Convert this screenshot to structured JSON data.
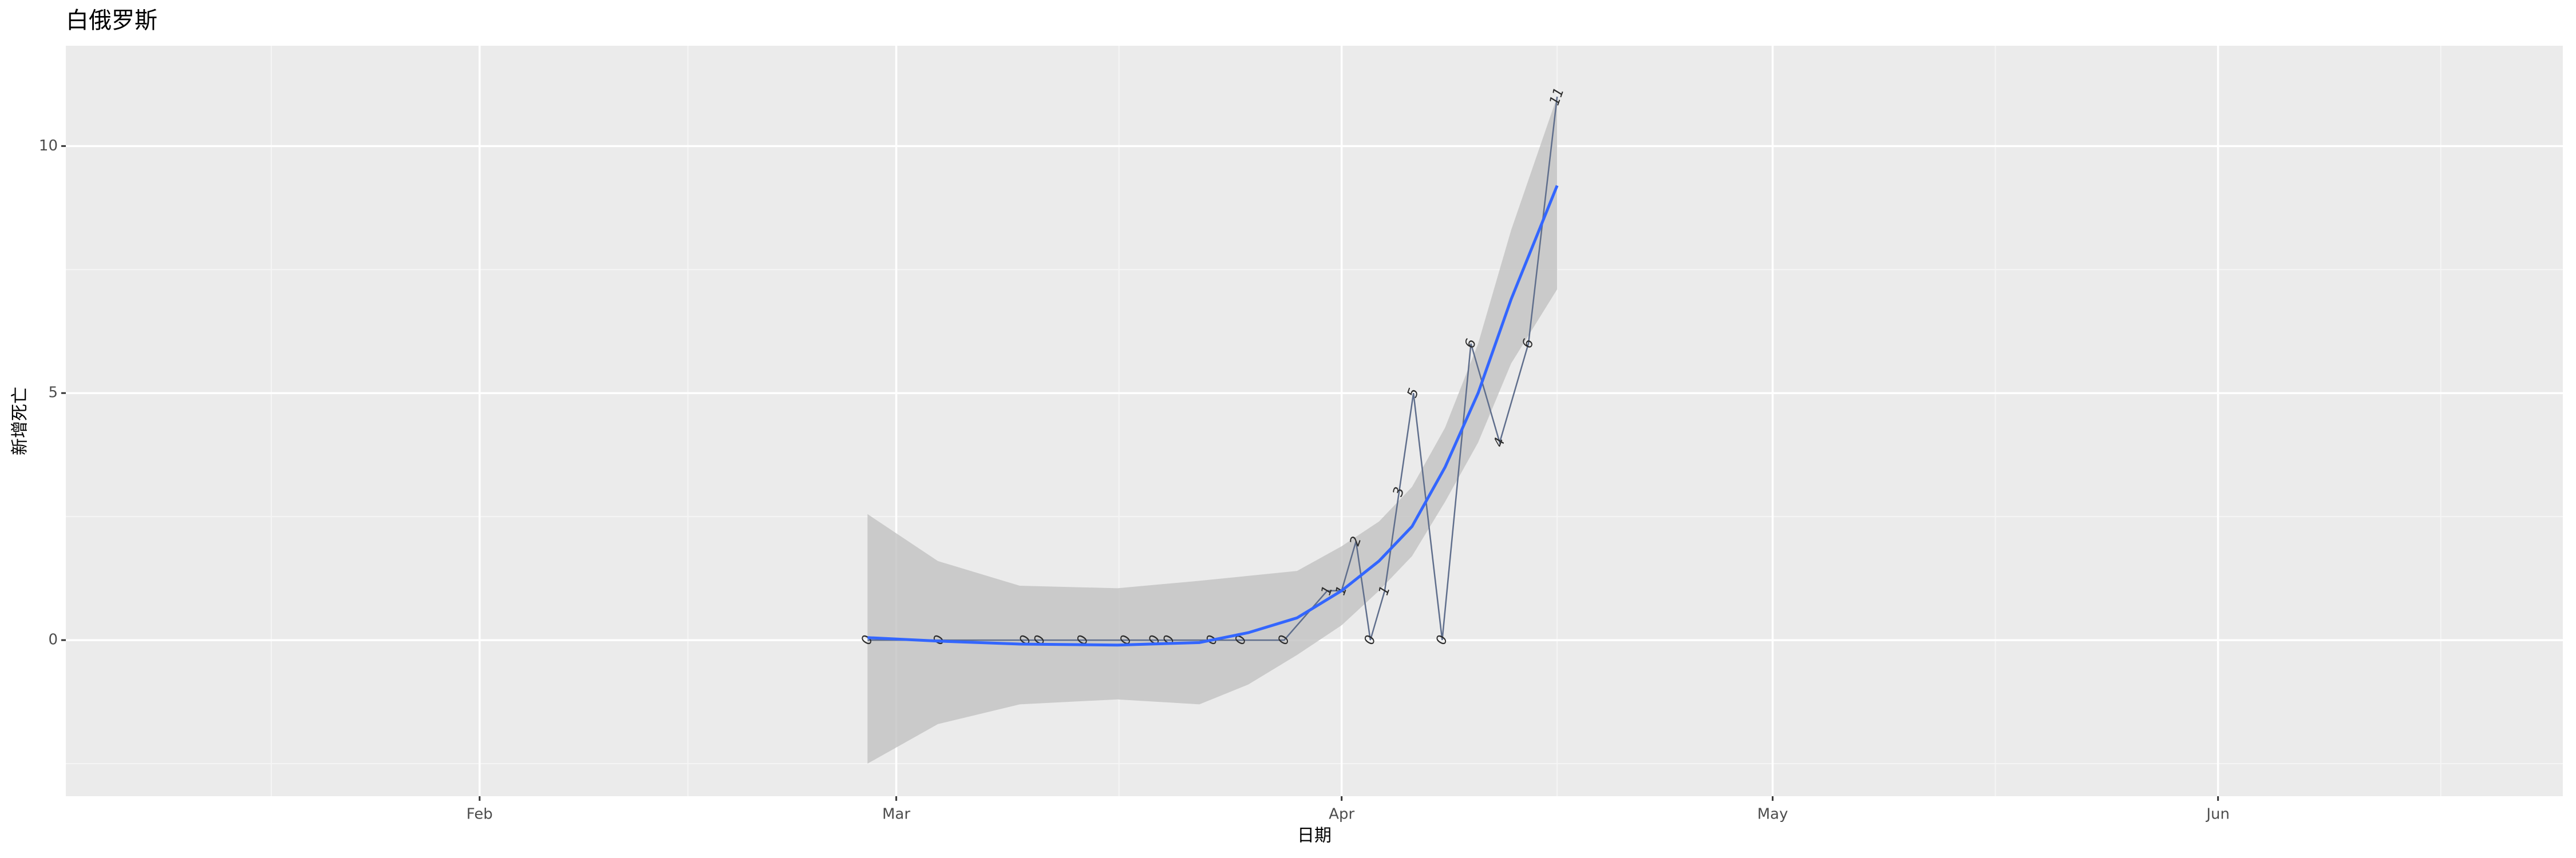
{
  "chart_data": {
    "type": "line",
    "title": "白俄罗斯",
    "xlabel": "日期",
    "ylabel": "新增死亡",
    "x": [
      59,
      64,
      70,
      71,
      74,
      77,
      79,
      80,
      83,
      85,
      88,
      91,
      92,
      93,
      94,
      95,
      96,
      97,
      99,
      101,
      103,
      105,
      107
    ],
    "series": [
      {
        "color": "#5f6e8c",
        "values": [
          0,
          0,
          0,
          0,
          0,
          0,
          0,
          0,
          0,
          0,
          0,
          1,
          1,
          2,
          0,
          1,
          3,
          5,
          0,
          6,
          4,
          6,
          11
        ]
      }
    ],
    "smooth": {
      "color": "#3366ff",
      "fill": "#c2c2c2",
      "x": [
        59,
        63.9,
        69.6,
        76.4,
        82.1,
        85.5,
        88.9,
        92,
        94.6,
        96.9,
        99.2,
        101.5,
        103.8,
        107
      ],
      "values": [
        0.05,
        -0.02,
        -0.08,
        -0.1,
        -0.05,
        0.15,
        0.45,
        1.0,
        1.6,
        2.3,
        3.5,
        5.0,
        6.9,
        9.2
      ],
      "lower": [
        -2.5,
        -1.7,
        -1.3,
        -1.2,
        -1.3,
        -0.9,
        -0.3,
        0.3,
        1.0,
        1.7,
        2.8,
        4.0,
        5.6,
        7.1
      ],
      "upper": [
        2.55,
        1.6,
        1.1,
        1.05,
        1.2,
        1.3,
        1.4,
        1.9,
        2.4,
        3.1,
        4.3,
        6.0,
        8.3,
        11.0
      ]
    },
    "xlim": [
      3.2,
      177
    ],
    "ylim": [
      -3.16,
      12.03
    ],
    "xticks": [
      {
        "value": 32,
        "label": "Feb"
      },
      {
        "value": 61,
        "label": "Mar"
      },
      {
        "value": 92,
        "label": "Apr"
      },
      {
        "value": 122,
        "label": "May"
      },
      {
        "value": 153,
        "label": "Jun"
      }
    ],
    "yticks": [
      0,
      5,
      10
    ],
    "grid": true
  }
}
